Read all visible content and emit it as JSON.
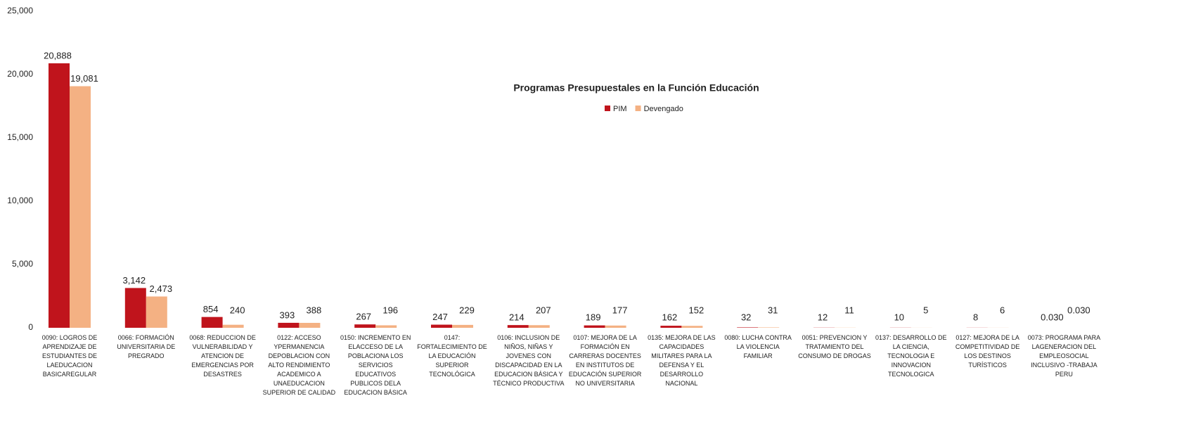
{
  "chart_data": {
    "type": "bar",
    "title": "Programas Presupuestales en la Función Educación",
    "categories": [
      "0090: LOGROS DE APRENDIZAJE DE ESTUDIANTES DE LAEDUCACION BASICAREGULAR",
      "0066: FORMACIÓN UNIVERSITARIA DE PREGRADO",
      "0068: REDUCCION DE VULNERABILIDAD Y ATENCION DE EMERGENCIAS POR DESASTRES",
      "0122: ACCESO YPERMANENCIA DEPOBLACION CON ALTO RENDIMIENTO ACADEMICO A UNAEDUCACION SUPERIOR DE CALIDAD",
      "0150: INCREMENTO EN ELACCESO DE LA POBLACIONA LOS SERVICIOS EDUCATIVOS PUBLICOS DELA EDUCACION BÁSICA",
      "0147: FORTALECIMIENTO DE LA EDUCACIÓN SUPERIOR TECNOLÓGICA",
      "0106: INCLUSION DE NIÑOS, NIÑAS Y JOVENES CON DISCAPACIDAD EN LA EDUCACION BÁSICA Y TÉCNICO PRODUCTIVA",
      "0107: MEJORA DE LA FORMACIÓN EN CARRERAS DOCENTES EN INSTITUTOS DE EDUCACIÓN SUPERIOR NO UNIVERSITARIA",
      "0135: MEJORA DE LAS CAPACIDADES MILITARES PARA LA DEFENSA Y EL DESARROLLO NACIONAL",
      "0080: LUCHA CONTRA LA VIOLENCIA FAMILIAR",
      "0051: PREVENCION Y TRATAMIENTO DEL CONSUMO DE DROGAS",
      "0137: DESARROLLO DE LA CIENCIA, TECNOLOGIA E INNOVACION TECNOLOGICA",
      "0127: MEJORA DE LA COMPETITIVIDAD DE LOS DESTINOS TURÍSTICOS",
      "0073: PROGRAMA PARA LAGENERACION DEL EMPLEOSOCIAL INCLUSIVO -TRABAJA PERU"
    ],
    "series": [
      {
        "name": "PIM",
        "color": "#c0141c",
        "values": [
          20888,
          3142,
          854,
          393,
          267,
          247,
          214,
          189,
          162,
          32,
          12,
          10,
          8,
          0.03
        ],
        "value_labels": [
          "20,888",
          "3,142",
          "854",
          "393",
          "267",
          "247",
          "214",
          "189",
          "162",
          "32",
          "12",
          "10",
          "8",
          "0.030"
        ]
      },
      {
        "name": "Devengado",
        "color": "#f4b183",
        "values": [
          19081,
          2473,
          240,
          388,
          196,
          229,
          207,
          177,
          152,
          31,
          11,
          5,
          6,
          0.03
        ],
        "value_labels": [
          "19,081",
          "2,473",
          "240",
          "388",
          "196",
          "229",
          "207",
          "177",
          "152",
          "31",
          "11",
          "5",
          "6",
          "0.030"
        ]
      }
    ],
    "ylim": [
      0,
      25000
    ],
    "yticks": [
      0,
      {
        "value": 5000,
        "label": "5,000"
      },
      {
        "value": 10000,
        "label": "10,000"
      },
      {
        "value": 15000,
        "label": "15,000"
      },
      {
        "value": 20000,
        "label": "20,000"
      },
      {
        "value": 25000,
        "label": "25,000"
      }
    ],
    "grid": false,
    "legend": "top"
  }
}
